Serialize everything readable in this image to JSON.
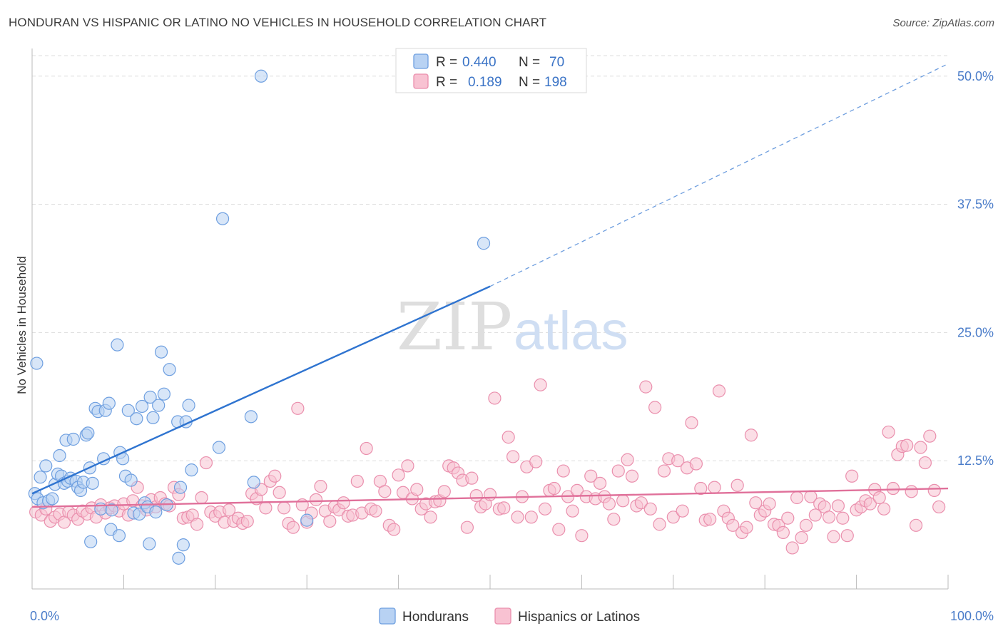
{
  "title": "HONDURAN VS HISPANIC OR LATINO NO VEHICLES IN HOUSEHOLD CORRELATION CHART",
  "source": "Source: ZipAtlas.com",
  "watermark": {
    "zip": "ZIP",
    "atlas": "atlas"
  },
  "colors": {
    "blue_fill": "#b8d2f3",
    "blue_stroke": "#6e9fe0",
    "blue_line": "#2f74d0",
    "pink_fill": "#f8c2d2",
    "pink_stroke": "#ea8fad",
    "pink_line": "#e0709a",
    "grid": "#dddddd",
    "tick_label": "#4a7cc9"
  },
  "legend": {
    "r_label": "R =",
    "n_label": "N =",
    "rows": [
      {
        "r": "0.440",
        "n": "70",
        "series": "blue"
      },
      {
        "r": "0.189",
        "n": "198",
        "series": "pink"
      }
    ]
  },
  "chart_data": {
    "type": "scatter",
    "title": "HONDURAN VS HISPANIC OR LATINO NO VEHICLES IN HOUSEHOLD CORRELATION CHART",
    "xlabel": "",
    "ylabel": "No Vehicles in Household",
    "xlim": [
      0,
      100
    ],
    "ylim": [
      0,
      52
    ],
    "x_tick_labels": {
      "left": "0.0%",
      "right": "100.0%"
    },
    "y_ticks": [
      {
        "value": 12.5,
        "label": "12.5%"
      },
      {
        "value": 25.0,
        "label": "25.0%"
      },
      {
        "value": 37.5,
        "label": "37.5%"
      },
      {
        "value": 50.0,
        "label": "50.0%"
      }
    ],
    "grid": true,
    "legend_position": "top-center",
    "series": [
      {
        "name": "Hondurans",
        "color": "#b8d2f3",
        "trend": {
          "x0": 0,
          "y0": 9.3,
          "x1": 50,
          "y1": 29.5,
          "dashed_to_x": 100,
          "dashed_to_y": 51.2
        },
        "points": [
          [
            0.3,
            9.3
          ],
          [
            0.6,
            8.8
          ],
          [
            0.5,
            22.0
          ],
          [
            0.9,
            10.9
          ],
          [
            1.2,
            8.4
          ],
          [
            1.5,
            12.0
          ],
          [
            1.8,
            8.6
          ],
          [
            2.2,
            8.8
          ],
          [
            2.5,
            10.2
          ],
          [
            2.8,
            11.2
          ],
          [
            3.0,
            13.0
          ],
          [
            3.2,
            11.0
          ],
          [
            3.5,
            10.3
          ],
          [
            3.7,
            14.5
          ],
          [
            3.9,
            10.5
          ],
          [
            4.2,
            10.8
          ],
          [
            4.5,
            14.6
          ],
          [
            4.8,
            10.5
          ],
          [
            5.0,
            9.9
          ],
          [
            5.3,
            9.6
          ],
          [
            5.6,
            10.4
          ],
          [
            5.9,
            15.0
          ],
          [
            6.1,
            15.2
          ],
          [
            6.3,
            11.8
          ],
          [
            6.6,
            10.3
          ],
          [
            6.9,
            17.6
          ],
          [
            7.2,
            17.3
          ],
          [
            7.5,
            7.8
          ],
          [
            7.8,
            12.7
          ],
          [
            8.0,
            17.4
          ],
          [
            8.4,
            18.1
          ],
          [
            8.7,
            7.7
          ],
          [
            9.3,
            23.8
          ],
          [
            9.6,
            13.3
          ],
          [
            9.9,
            12.7
          ],
          [
            10.2,
            11.0
          ],
          [
            10.5,
            17.4
          ],
          [
            10.8,
            10.6
          ],
          [
            11.1,
            7.4
          ],
          [
            11.4,
            16.6
          ],
          [
            11.7,
            7.3
          ],
          [
            12.0,
            17.8
          ],
          [
            12.3,
            8.4
          ],
          [
            12.6,
            8.0
          ],
          [
            12.9,
            18.7
          ],
          [
            13.2,
            16.7
          ],
          [
            13.5,
            7.5
          ],
          [
            13.8,
            17.9
          ],
          [
            14.1,
            23.1
          ],
          [
            14.4,
            19.0
          ],
          [
            14.7,
            8.2
          ],
          [
            15.0,
            21.4
          ],
          [
            15.9,
            16.3
          ],
          [
            16.2,
            9.9
          ],
          [
            16.5,
            4.3
          ],
          [
            16.8,
            16.3
          ],
          [
            17.1,
            17.9
          ],
          [
            17.4,
            11.6
          ],
          [
            20.8,
            36.1
          ],
          [
            25.0,
            50.0
          ],
          [
            23.9,
            16.8
          ],
          [
            24.2,
            10.4
          ],
          [
            20.4,
            13.8
          ],
          [
            6.4,
            4.6
          ],
          [
            8.6,
            5.8
          ],
          [
            9.5,
            5.2
          ],
          [
            12.8,
            4.4
          ],
          [
            16.0,
            3.0
          ],
          [
            30.0,
            6.7
          ],
          [
            49.3,
            33.7
          ]
        ]
      },
      {
        "name": "Hispanics or Latinos",
        "color": "#f8c2d2",
        "trend": {
          "x0": 0,
          "y0": 8.0,
          "x1": 100,
          "y1": 9.8
        },
        "points": [
          [
            0.4,
            7.5
          ],
          [
            1.0,
            7.2
          ],
          [
            1.5,
            7.8
          ],
          [
            2.0,
            6.6
          ],
          [
            2.5,
            7.0
          ],
          [
            3.0,
            7.3
          ],
          [
            3.5,
            6.5
          ],
          [
            4.0,
            7.5
          ],
          [
            4.5,
            7.2
          ],
          [
            5.0,
            6.8
          ],
          [
            5.5,
            7.6
          ],
          [
            6.0,
            7.3
          ],
          [
            6.5,
            7.9
          ],
          [
            7.0,
            7.0
          ],
          [
            7.5,
            8.2
          ],
          [
            8.0,
            7.4
          ],
          [
            8.5,
            7.9
          ],
          [
            9.0,
            8.1
          ],
          [
            9.5,
            7.6
          ],
          [
            10.0,
            8.3
          ],
          [
            10.5,
            7.2
          ],
          [
            11.0,
            8.6
          ],
          [
            11.5,
            9.9
          ],
          [
            12.0,
            8.1
          ],
          [
            12.5,
            7.7
          ],
          [
            13.0,
            8.7
          ],
          [
            13.5,
            8.0
          ],
          [
            14.0,
            8.9
          ],
          [
            14.5,
            8.3
          ],
          [
            15.0,
            8.1
          ],
          [
            15.5,
            9.9
          ],
          [
            16.0,
            9.2
          ],
          [
            16.5,
            6.9
          ],
          [
            17.0,
            7.0
          ],
          [
            17.5,
            7.2
          ],
          [
            18.0,
            6.3
          ],
          [
            18.5,
            8.9
          ],
          [
            19.0,
            12.3
          ],
          [
            19.5,
            7.5
          ],
          [
            20.0,
            7.1
          ],
          [
            20.5,
            7.5
          ],
          [
            21.0,
            6.5
          ],
          [
            21.5,
            7.7
          ],
          [
            22.0,
            6.6
          ],
          [
            22.5,
            6.9
          ],
          [
            23.0,
            6.4
          ],
          [
            23.5,
            6.6
          ],
          [
            24.0,
            9.3
          ],
          [
            24.5,
            8.8
          ],
          [
            25.0,
            9.7
          ],
          [
            25.5,
            7.9
          ],
          [
            26.0,
            10.5
          ],
          [
            26.5,
            11.0
          ],
          [
            27.0,
            9.4
          ],
          [
            27.5,
            7.9
          ],
          [
            28.0,
            6.4
          ],
          [
            28.5,
            6.0
          ],
          [
            29.0,
            17.6
          ],
          [
            29.5,
            8.2
          ],
          [
            30.0,
            6.5
          ],
          [
            30.5,
            7.4
          ],
          [
            31.0,
            8.7
          ],
          [
            31.5,
            10.0
          ],
          [
            32.0,
            7.6
          ],
          [
            32.5,
            6.6
          ],
          [
            33.0,
            8.0
          ],
          [
            33.5,
            7.7
          ],
          [
            34.0,
            8.4
          ],
          [
            34.5,
            7.1
          ],
          [
            35.0,
            7.2
          ],
          [
            35.5,
            10.5
          ],
          [
            36.0,
            7.4
          ],
          [
            36.5,
            13.7
          ],
          [
            37.0,
            7.8
          ],
          [
            37.5,
            7.6
          ],
          [
            38.0,
            10.5
          ],
          [
            38.5,
            9.5
          ],
          [
            39.0,
            6.2
          ],
          [
            39.5,
            5.8
          ],
          [
            40.0,
            11.1
          ],
          [
            40.5,
            9.4
          ],
          [
            41.0,
            12.0
          ],
          [
            41.5,
            8.8
          ],
          [
            42.0,
            9.7
          ],
          [
            42.5,
            7.8
          ],
          [
            43.0,
            8.3
          ],
          [
            43.5,
            7.0
          ],
          [
            44.0,
            8.5
          ],
          [
            44.5,
            8.6
          ],
          [
            45.0,
            9.5
          ],
          [
            45.5,
            12.0
          ],
          [
            46.0,
            11.8
          ],
          [
            46.5,
            11.3
          ],
          [
            47.0,
            10.6
          ],
          [
            47.5,
            6.0
          ],
          [
            48.0,
            10.8
          ],
          [
            48.5,
            9.1
          ],
          [
            49.0,
            8.0
          ],
          [
            49.5,
            8.3
          ],
          [
            50.0,
            9.2
          ],
          [
            50.5,
            18.6
          ],
          [
            51.0,
            7.8
          ],
          [
            51.5,
            7.9
          ],
          [
            52.0,
            14.8
          ],
          [
            52.5,
            12.9
          ],
          [
            53.0,
            7.0
          ],
          [
            53.5,
            9.0
          ],
          [
            54.0,
            11.9
          ],
          [
            54.5,
            7.0
          ],
          [
            55.0,
            12.4
          ],
          [
            55.5,
            19.9
          ],
          [
            56.0,
            7.8
          ],
          [
            56.5,
            9.6
          ],
          [
            57.0,
            9.8
          ],
          [
            57.5,
            5.8
          ],
          [
            58.0,
            11.5
          ],
          [
            58.5,
            9.0
          ],
          [
            59.0,
            7.6
          ],
          [
            59.5,
            9.6
          ],
          [
            60.0,
            5.2
          ],
          [
            60.5,
            9.0
          ],
          [
            61.0,
            11.0
          ],
          [
            61.5,
            8.8
          ],
          [
            62.0,
            10.3
          ],
          [
            62.5,
            9.0
          ],
          [
            63.0,
            8.3
          ],
          [
            63.5,
            6.8
          ],
          [
            64.0,
            11.5
          ],
          [
            64.5,
            8.6
          ],
          [
            65.0,
            12.6
          ],
          [
            65.5,
            11.0
          ],
          [
            66.0,
            8.1
          ],
          [
            66.5,
            8.4
          ],
          [
            67.0,
            19.7
          ],
          [
            67.5,
            7.8
          ],
          [
            68.0,
            17.7
          ],
          [
            68.5,
            6.3
          ],
          [
            69.0,
            11.5
          ],
          [
            69.5,
            12.7
          ],
          [
            70.0,
            7.0
          ],
          [
            70.5,
            12.5
          ],
          [
            71.0,
            7.6
          ],
          [
            71.5,
            11.8
          ],
          [
            72.0,
            16.2
          ],
          [
            72.5,
            12.2
          ],
          [
            73.0,
            9.8
          ],
          [
            73.5,
            6.7
          ],
          [
            74.0,
            6.8
          ],
          [
            74.5,
            9.9
          ],
          [
            75.0,
            19.3
          ],
          [
            75.5,
            7.6
          ],
          [
            76.0,
            6.9
          ],
          [
            76.5,
            6.2
          ],
          [
            77.0,
            10.1
          ],
          [
            77.5,
            5.5
          ],
          [
            78.0,
            6.0
          ],
          [
            78.5,
            15.0
          ],
          [
            79.0,
            8.4
          ],
          [
            79.5,
            7.2
          ],
          [
            80.0,
            7.6
          ],
          [
            80.5,
            8.3
          ],
          [
            81.0,
            6.3
          ],
          [
            81.5,
            6.2
          ],
          [
            82.0,
            5.5
          ],
          [
            82.5,
            6.9
          ],
          [
            83.0,
            4.0
          ],
          [
            83.5,
            8.9
          ],
          [
            84.0,
            5.0
          ],
          [
            84.5,
            6.2
          ],
          [
            85.0,
            9.0
          ],
          [
            85.5,
            7.2
          ],
          [
            86.0,
            8.3
          ],
          [
            86.5,
            8.0
          ],
          [
            87.0,
            7.0
          ],
          [
            87.5,
            5.1
          ],
          [
            88.0,
            8.1
          ],
          [
            88.5,
            6.9
          ],
          [
            89.0,
            5.2
          ],
          [
            89.5,
            11.0
          ],
          [
            90.0,
            7.7
          ],
          [
            90.5,
            8.0
          ],
          [
            91.0,
            8.6
          ],
          [
            91.5,
            8.3
          ],
          [
            92.0,
            9.7
          ],
          [
            92.5,
            8.9
          ],
          [
            93.0,
            7.8
          ],
          [
            93.5,
            15.3
          ],
          [
            94.0,
            9.8
          ],
          [
            94.5,
            13.1
          ],
          [
            95.0,
            13.9
          ],
          [
            95.5,
            14.0
          ],
          [
            96.0,
            9.5
          ],
          [
            96.5,
            6.2
          ],
          [
            97.0,
            13.8
          ],
          [
            97.5,
            12.3
          ],
          [
            98.0,
            14.9
          ],
          [
            98.5,
            9.6
          ],
          [
            99.0,
            8.0
          ]
        ]
      }
    ]
  }
}
